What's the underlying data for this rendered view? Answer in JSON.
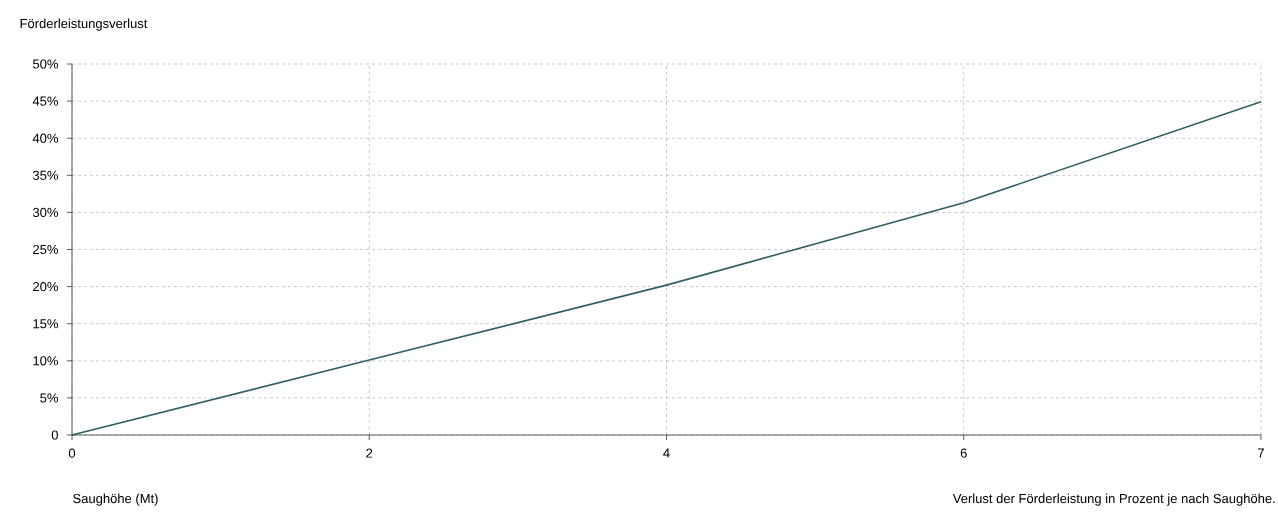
{
  "chart_data": {
    "type": "line",
    "ylabel": "Förderleistungsverlust",
    "xlabel": "Saughöhe (Mt)",
    "annotations": [
      "Verlust der Förderleistung in Prozent je nach Saughöhe."
    ],
    "categories": [
      "0",
      "2",
      "4",
      "6",
      "7"
    ],
    "series": [
      {
        "color": "#2f5f63",
        "values": [
          0,
          10.1,
          20.2,
          31.3,
          44.9
        ]
      }
    ],
    "ylim": [
      0,
      50
    ],
    "yticks": [
      0,
      {
        "value": 5,
        "label": "5%"
      },
      {
        "value": 10,
        "label": "10%"
      },
      {
        "value": 15,
        "label": "15%"
      },
      {
        "value": 20,
        "label": "20%"
      },
      {
        "value": 25,
        "label": "25%"
      },
      {
        "value": 30,
        "label": "30%"
      },
      {
        "value": 35,
        "label": "35%"
      },
      {
        "value": 40,
        "label": "40%"
      },
      {
        "value": 45,
        "label": "45%"
      },
      {
        "value": 50,
        "label": "50%"
      }
    ],
    "grid": true,
    "marker": "none",
    "line_style": "solid"
  }
}
